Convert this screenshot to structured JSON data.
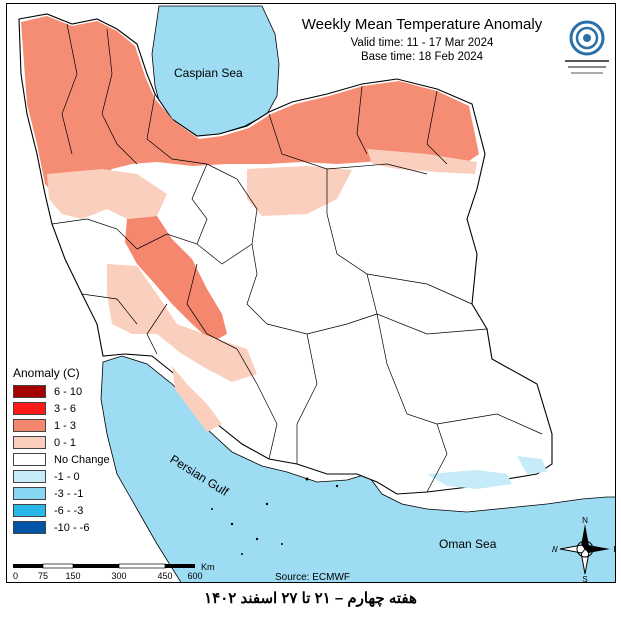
{
  "title": "Weekly Mean Temperature Anomaly",
  "valid_time": "Valid time: 11 - 17 Mar 2024",
  "base_time": "Base time: 18 Feb 2024",
  "labels": {
    "caspian": "Caspian Sea",
    "gulf": "Persian Gulf",
    "oman": "Oman Sea"
  },
  "legend": {
    "title": "Anomaly (C)",
    "items": [
      {
        "label": "6 - 10",
        "color": "#a50000"
      },
      {
        "label": "3 - 6",
        "color": "#ff1a1a"
      },
      {
        "label": "1 - 3",
        "color": "#f4876e"
      },
      {
        "label": "0 - 1",
        "color": "#fbcfbd"
      },
      {
        "label": "No Change",
        "color": "#ffffff"
      },
      {
        "label": "-1 - 0",
        "color": "#c6ebf9"
      },
      {
        "label": "-3 - -1",
        "color": "#88d7f2"
      },
      {
        "label": "-6 - -3",
        "color": "#27b7e9"
      },
      {
        "label": "-10 - -6",
        "color": "#0055a8"
      }
    ]
  },
  "scale": {
    "ticks": [
      "0",
      "75",
      "150",
      "300",
      "450",
      "600"
    ],
    "unit": "Km"
  },
  "compass": {
    "n": "N",
    "s": "S",
    "e": "E",
    "w": "W"
  },
  "source": "Source: ECMWF",
  "caption": "هفته چهارم – ۲۱ تا ۲۷ اسفند ۱۴۰۲",
  "colors": {
    "sea": "#9ddcf2",
    "border": "#000000"
  }
}
